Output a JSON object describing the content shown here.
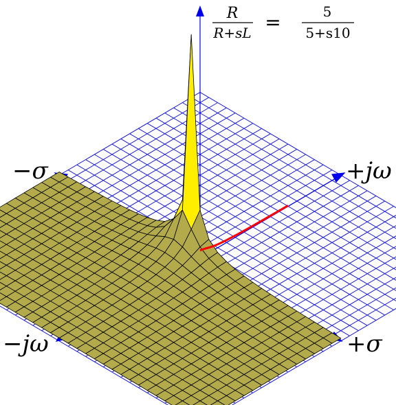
{
  "equation": {
    "lhs_numerator": "R",
    "lhs_denominator": "R+sL",
    "equals": "=",
    "rhs_numerator": "5",
    "rhs_denominator": "5+s10"
  },
  "axes": {
    "neg_sigma": "−σ",
    "pos_sigma": "+σ",
    "pos_jomega": "+jω",
    "neg_jomega": "−jω"
  },
  "colors": {
    "grid": "#1c1cdc",
    "axis": "#0000ee",
    "surface_dark": "#b3ab4b",
    "surface_mid": "#d8cd48",
    "surface_bright": "#ffee00",
    "edge": "#000000",
    "frequency_response": "#ff0000"
  }
}
